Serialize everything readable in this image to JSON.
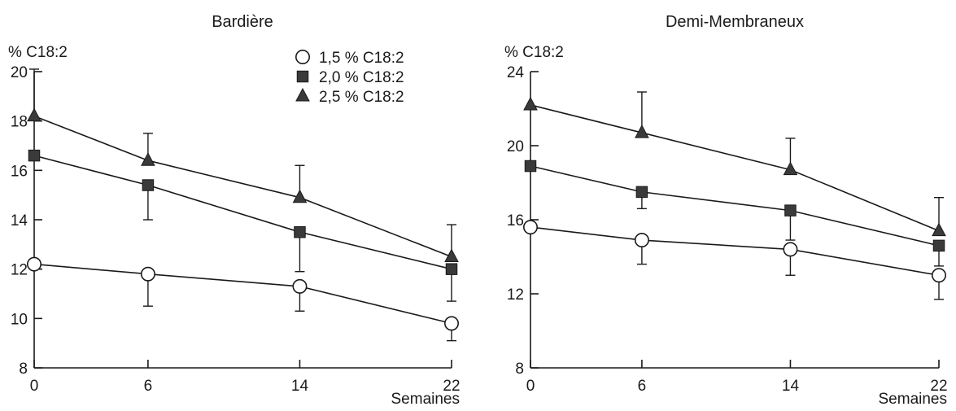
{
  "chart_data": [
    {
      "type": "line",
      "title": "Bardière",
      "ylabel": "% C18:2",
      "xlabel": "Semaines",
      "x": [
        0,
        6,
        14,
        22
      ],
      "xlim": [
        0,
        22
      ],
      "ylim": [
        8,
        20
      ],
      "yticks": [
        8,
        10,
        12,
        14,
        16,
        18,
        20
      ],
      "xticks": [
        0,
        6,
        14,
        22
      ],
      "legend": "top-right",
      "series": [
        {
          "name": "1,5 % C18:2",
          "marker": "circle-open",
          "values": [
            12.2,
            11.8,
            11.3,
            9.8
          ],
          "err_up": [
            0,
            0,
            0,
            0
          ],
          "err_down": [
            0,
            1.3,
            1.0,
            0.7
          ]
        },
        {
          "name": "2,0 % C18:2",
          "marker": "square-filled",
          "values": [
            16.6,
            15.4,
            13.5,
            12.0
          ],
          "err_up": [
            0,
            0,
            0,
            0
          ],
          "err_down": [
            0,
            1.4,
            1.6,
            1.3
          ]
        },
        {
          "name": "2,5 % C18:2",
          "marker": "triangle-filled",
          "values": [
            18.2,
            16.4,
            14.9,
            12.5
          ],
          "err_up": [
            1.9,
            1.1,
            1.3,
            1.3
          ],
          "err_down": [
            0,
            0,
            0,
            0
          ]
        }
      ]
    },
    {
      "type": "line",
      "title": "Demi-Membraneux",
      "ylabel": "% C18:2",
      "xlabel": "Semaines",
      "x": [
        0,
        6,
        14,
        22
      ],
      "xlim": [
        0,
        22
      ],
      "ylim": [
        8,
        24
      ],
      "yticks": [
        8,
        12,
        16,
        20,
        24
      ],
      "xticks": [
        0,
        6,
        14,
        22
      ],
      "legend": "none",
      "series": [
        {
          "name": "1,5 % C18:2",
          "marker": "circle-open",
          "values": [
            15.6,
            14.9,
            14.4,
            13.0
          ],
          "err_up": [
            0,
            0,
            0,
            0
          ],
          "err_down": [
            0,
            1.3,
            1.4,
            1.3
          ]
        },
        {
          "name": "2,0 % C18:2",
          "marker": "square-filled",
          "values": [
            18.9,
            17.5,
            16.5,
            14.6
          ],
          "err_up": [
            0,
            0,
            0,
            0
          ],
          "err_down": [
            0,
            0.9,
            1.6,
            1.1
          ]
        },
        {
          "name": "2,5 % C18:2",
          "marker": "triangle-filled",
          "values": [
            22.2,
            20.7,
            18.7,
            15.4
          ],
          "err_up": [
            0,
            2.2,
            1.7,
            1.8
          ],
          "err_down": [
            0,
            0,
            0,
            0
          ]
        }
      ]
    }
  ]
}
